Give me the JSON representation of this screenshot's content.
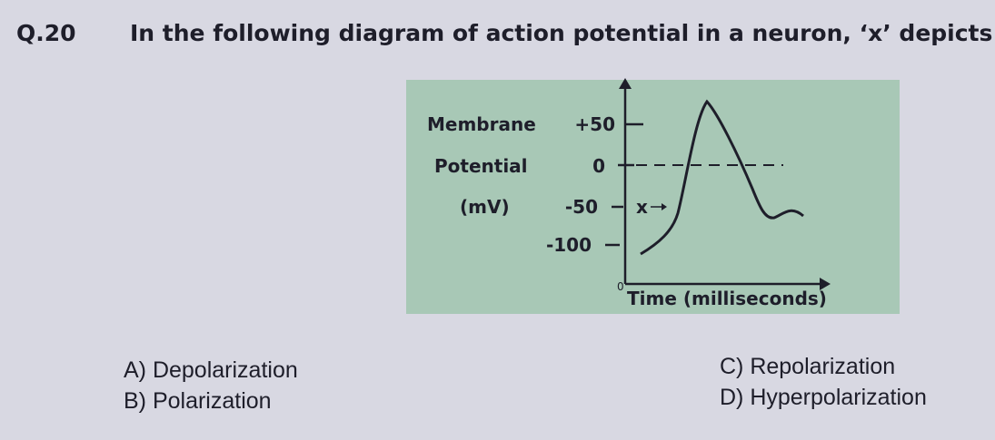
{
  "question": {
    "number": "Q.20",
    "text": "In the following diagram of action potential in a neuron, ‘x’ depicts:"
  },
  "diagram": {
    "y_label": [
      "Membrane",
      "Potential",
      "(mV)"
    ],
    "y_ticks": [
      "+50",
      "0",
      "-50",
      "-100"
    ],
    "marker": "x",
    "origin": "0",
    "x_label": "Time (milliseconds)"
  },
  "options": [
    "A) Depolarization",
    "B) Polarization",
    "C) Repolarization",
    "D) Hyperpolarization"
  ]
}
